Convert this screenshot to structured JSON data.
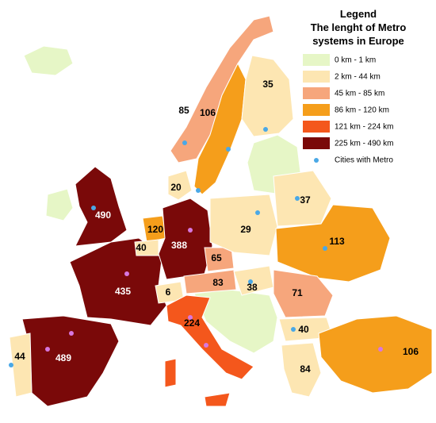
{
  "legend": {
    "title": [
      "Legend",
      "The lenght of Metro",
      "systems in Europe"
    ],
    "items": [
      {
        "label": "0 km - 1 km",
        "color": "#e6f6c6"
      },
      {
        "label": "2 km - 44 km",
        "color": "#fde6b2"
      },
      {
        "label": "45 km - 85 km",
        "color": "#f6a67c"
      },
      {
        "label": "86 km - 120 km",
        "color": "#f59e1b"
      },
      {
        "label": "121 km - 224 km",
        "color": "#f4571c"
      },
      {
        "label": "225 km - 490 km",
        "color": "#7a0909"
      }
    ],
    "cities_label": "Cities with Metro",
    "cities_color": "#4aa8e6"
  },
  "labels": [
    "35",
    "85",
    "106",
    "20",
    "37",
    "29",
    "490",
    "120",
    "388",
    "40",
    "113",
    "65",
    "435",
    "83",
    "38",
    "71",
    "6",
    "224",
    "40",
    "44",
    "489",
    "106",
    "84"
  ]
}
